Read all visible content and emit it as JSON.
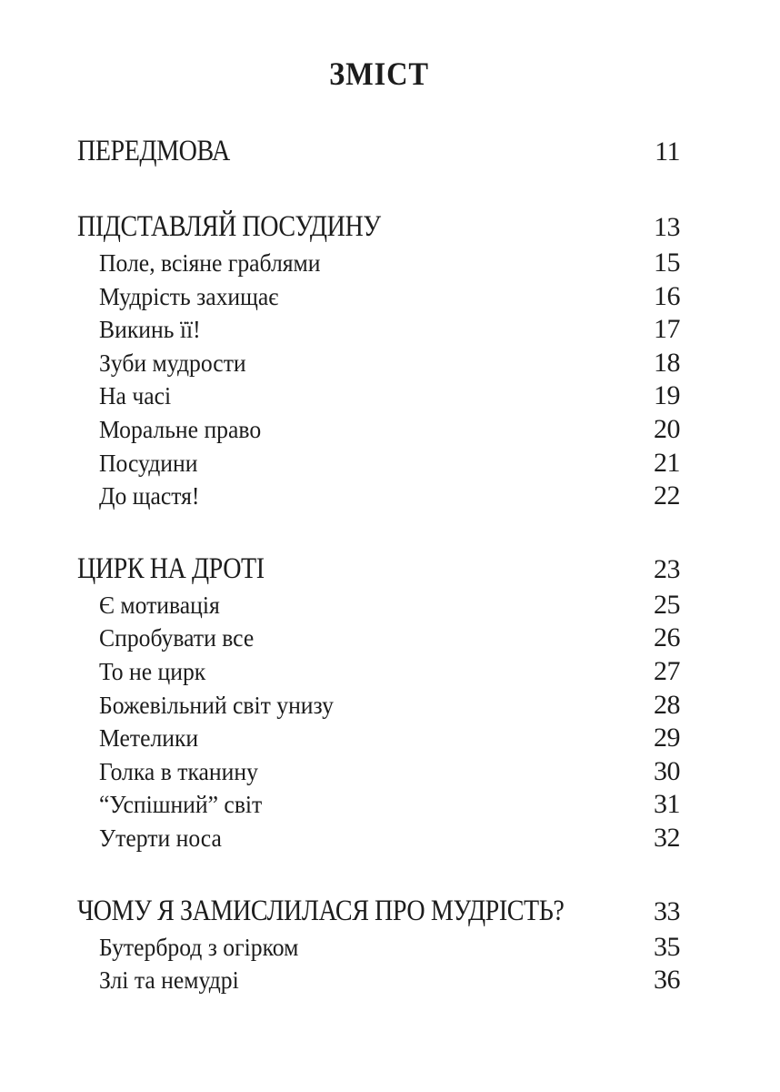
{
  "page": {
    "title": "ЗМІСТ",
    "background_color": "#ffffff",
    "text_color": "#1c1c1c"
  },
  "toc": {
    "entries": [
      {
        "level": "section",
        "title": "ПЕРЕДМОВА",
        "page": "11"
      },
      {
        "level": "section",
        "title": "ПІДСТАВЛЯЙ ПОСУДИНУ",
        "page": "13"
      },
      {
        "level": "item",
        "title": "Поле, всіяне граблями",
        "page": "15"
      },
      {
        "level": "item",
        "title": "Мудрість захищає",
        "page": "16"
      },
      {
        "level": "item",
        "title": "Викинь її!",
        "page": "17"
      },
      {
        "level": "item",
        "title": "Зуби мудрости",
        "page": "18"
      },
      {
        "level": "item",
        "title": "На часі",
        "page": "19"
      },
      {
        "level": "item",
        "title": "Моральне право",
        "page": "20"
      },
      {
        "level": "item",
        "title": "Посудини",
        "page": "21"
      },
      {
        "level": "item",
        "title": "До щастя!",
        "page": "22"
      },
      {
        "level": "section",
        "title": "ЦИРК НА ДРОТІ",
        "page": "23"
      },
      {
        "level": "item",
        "title": "Є мотивація",
        "page": "25"
      },
      {
        "level": "item",
        "title": "Спробувати все",
        "page": "26"
      },
      {
        "level": "item",
        "title": "То не цирк",
        "page": "27"
      },
      {
        "level": "item",
        "title": "Божевільний світ унизу",
        "page": "28"
      },
      {
        "level": "item",
        "title": "Метелики",
        "page": "29"
      },
      {
        "level": "item",
        "title": "Голка в тканину",
        "page": "30"
      },
      {
        "level": "item",
        "title": "“Успішний” світ",
        "page": "31"
      },
      {
        "level": "item",
        "title": "Утерти носа",
        "page": "32"
      },
      {
        "level": "section",
        "title": "ЧОМУ Я ЗАМИСЛИЛАСЯ ПРО МУДРІСТЬ?",
        "page": "33"
      },
      {
        "level": "item",
        "title": "Бутерброд з огірком",
        "page": "35"
      },
      {
        "level": "item",
        "title": "Злі та немудрі",
        "page": "36"
      }
    ]
  }
}
